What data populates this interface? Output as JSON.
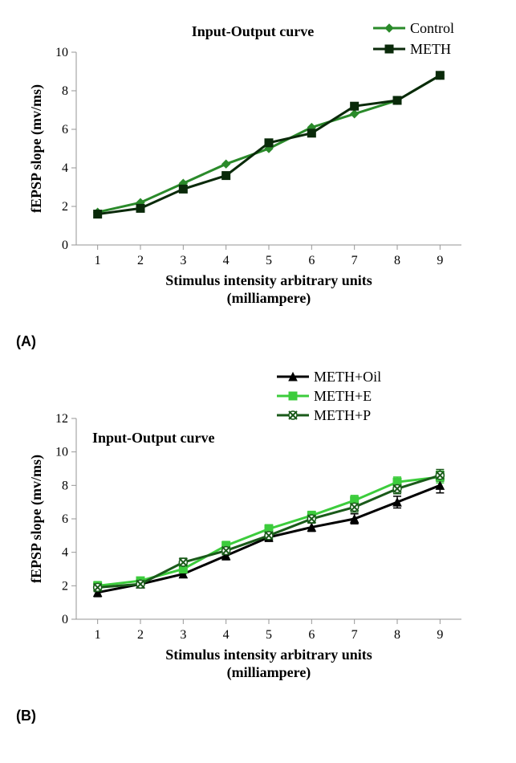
{
  "chartA": {
    "type": "line",
    "title": "Input-Output curve",
    "title_fontsize": 18,
    "xlabel_line1": "Stimulus intensity arbitrary units",
    "xlabel_line2": "(milliampere)",
    "ylabel": "fEPSP slope (mv/ms)",
    "axis_label_fontsize": 18,
    "tick_fontsize": 16,
    "x_categories": [
      1,
      2,
      3,
      4,
      5,
      6,
      7,
      8,
      9
    ],
    "ylim": [
      0,
      10
    ],
    "ytick_step": 2,
    "yticks": [
      0,
      2,
      4,
      6,
      8,
      10
    ],
    "axis_color": "#969696",
    "background_color": "#ffffff",
    "legend_fontsize": 18,
    "marker_size": 10,
    "line_width": 3,
    "series": [
      {
        "name": "Control",
        "color": "#2a8a2a",
        "marker": "diamond",
        "values": [
          1.7,
          2.2,
          3.2,
          4.2,
          5.0,
          6.1,
          6.8,
          7.5,
          8.8
        ]
      },
      {
        "name": "METH",
        "color": "#0a2a0a",
        "marker": "square",
        "values": [
          1.6,
          1.9,
          2.9,
          3.6,
          5.3,
          5.8,
          7.2,
          7.5,
          8.8
        ]
      }
    ]
  },
  "chartB": {
    "type": "line",
    "title": "Input-Output curve",
    "title_fontsize": 18,
    "xlabel_line1": "Stimulus intensity arbitrary units",
    "xlabel_line2": "(milliampere)",
    "ylabel": "fEPSP slope (mv/ms)",
    "axis_label_fontsize": 18,
    "tick_fontsize": 16,
    "x_categories": [
      1,
      2,
      3,
      4,
      5,
      6,
      7,
      8,
      9
    ],
    "ylim": [
      0,
      12
    ],
    "ytick_step": 2,
    "yticks": [
      0,
      2,
      4,
      6,
      8,
      10,
      12
    ],
    "axis_color": "#969696",
    "background_color": "#ffffff",
    "legend_fontsize": 18,
    "marker_size": 10,
    "line_width": 3,
    "error_cap": 5,
    "series": [
      {
        "name": "METH+Oil",
        "color": "#000000",
        "marker": "triangle",
        "values": [
          1.6,
          2.1,
          2.7,
          3.8,
          4.9,
          5.5,
          6.0,
          7.0,
          8.0
        ],
        "errors": [
          0.25,
          0.2,
          0.2,
          0.25,
          0.25,
          0.25,
          0.3,
          0.35,
          0.45
        ]
      },
      {
        "name": "METH+E",
        "color": "#3ccc3c",
        "marker": "square",
        "values": [
          2.0,
          2.3,
          3.0,
          4.4,
          5.4,
          6.2,
          7.1,
          8.2,
          8.5
        ],
        "errors": [
          0.25,
          0.2,
          0.2,
          0.25,
          0.25,
          0.25,
          0.3,
          0.3,
          0.35
        ]
      },
      {
        "name": "METH+P",
        "color": "#1a5a1a",
        "marker": "x-circle",
        "values": [
          1.9,
          2.1,
          3.4,
          4.1,
          5.0,
          6.0,
          6.7,
          7.8,
          8.6
        ],
        "errors": [
          0.25,
          0.2,
          0.25,
          0.25,
          0.25,
          0.25,
          0.3,
          0.3,
          0.35
        ]
      }
    ]
  },
  "panelA_label": "(A)",
  "panelB_label": "(B)"
}
